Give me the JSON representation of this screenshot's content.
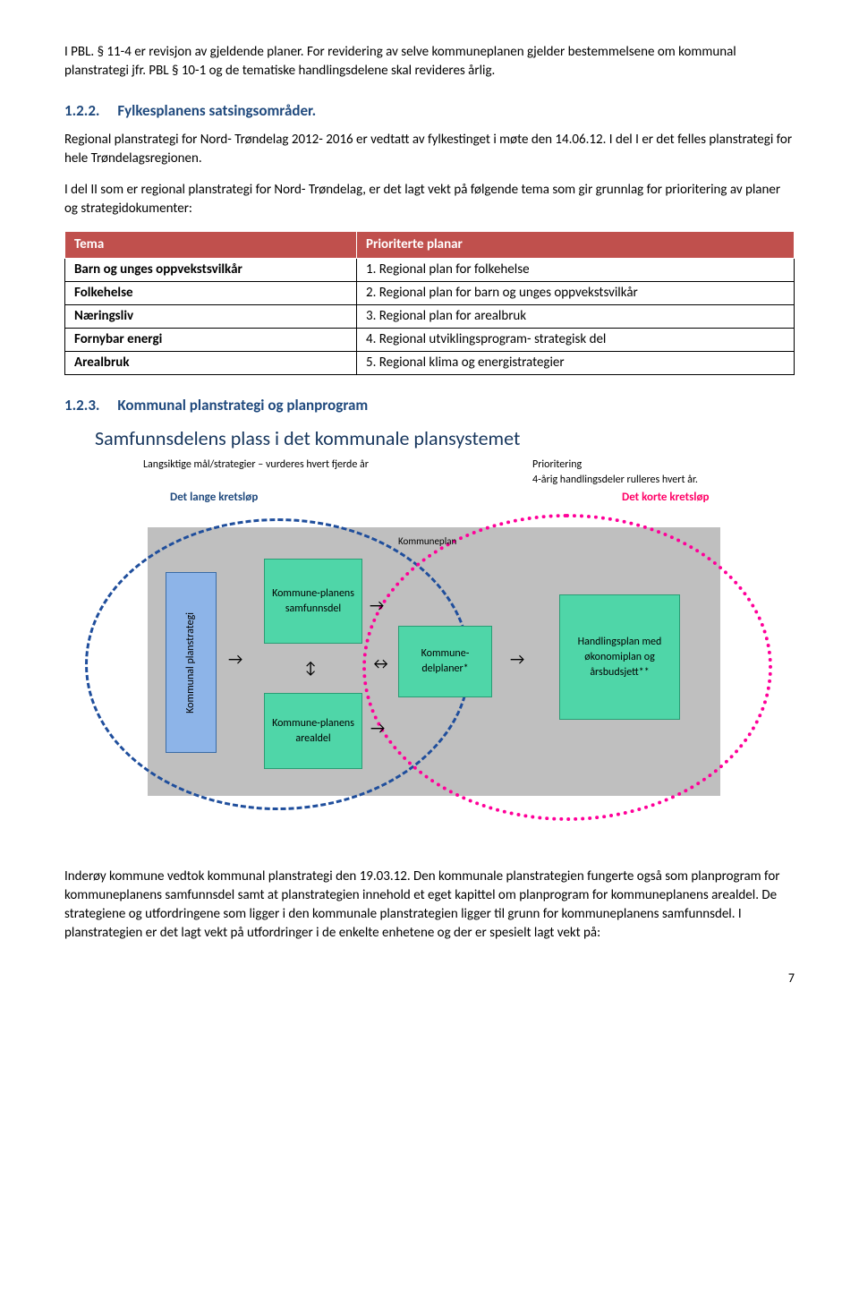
{
  "paragraphs": {
    "p1": "I PBL. § 11-4 er revisjon av gjeldende planer. For revidering av selve kommuneplanen gjelder bestemmelsene om kommunal planstrategi jfr. PBL § 10-1 og de tematiske handlingsdelene skal revideres årlig.",
    "p2_num": "1.2.2.",
    "p2_title": "Fylkesplanens satsingsområder.",
    "p3": "Regional planstrategi for Nord- Trøndelag 2012- 2016 er vedtatt av fylkestinget i møte den 14.06.12. I del I er det felles planstrategi for hele Trøndelagsregionen.",
    "p4": "I del II som er regional planstrategi for Nord- Trøndelag, er det lagt vekt på følgende tema som gir grunnlag for prioritering av planer og strategidokumenter:",
    "p5_num": "1.2.3.",
    "p5_title": "Kommunal planstrategi og planprogram",
    "p6": "Inderøy kommune vedtok kommunal planstrategi den 19.03.12. Den kommunale planstrategien fungerte også som planprogram for kommuneplanens samfunnsdel samt at planstrategien innehold et eget kapittel om planprogram for kommuneplanens arealdel.  De strategiene og utfordringene som ligger i den kommunale planstrategien ligger til grunn for kommuneplanens samfunnsdel. I planstrategien er det lagt vekt på utfordringer i de enkelte enhetene og der er spesielt lagt vekt på:"
  },
  "table": {
    "header_left": "Tema",
    "header_right": "Prioriterte planar",
    "rows": [
      {
        "left": "Barn og unges oppvekstsvilkår",
        "right": "1.  Regional plan for folkehelse"
      },
      {
        "left": "Folkehelse",
        "right": "2.  Regional plan for barn og unges oppvekstsvilkår"
      },
      {
        "left": "Næringsliv",
        "right": "3.  Regional plan for arealbruk"
      },
      {
        "left": "Fornybar energi",
        "right": "4.  Regional utviklingsprogram- strategisk del"
      },
      {
        "left": "Arealbruk",
        "right": "5.  Regional klima og energistrategier"
      }
    ]
  },
  "diagram": {
    "title": "Samfunnsdelens plass i det kommunale plansystemet",
    "sub_left": "Langsiktige mål/strategier – vurderes hvert fjerde år",
    "sub_right_1": "Prioritering",
    "sub_right_2": "4-årig handlingsdeler rulleres hvert  år.",
    "cycle_blue": "Det lange kretsløp",
    "cycle_pink": "Det korte kretsløp",
    "kommuneplan": "Kommuneplan",
    "box_kommunal": "Kommunal planstrategi",
    "box_samf": "Kommune-planens samfunnsdel",
    "box_areal": "Kommune-planens arealdel",
    "box_delplaner": "Kommune-delplaner*",
    "box_handling": "Handlingsplan med økonomiplan og årsbudsjett**"
  },
  "page_number": "7"
}
